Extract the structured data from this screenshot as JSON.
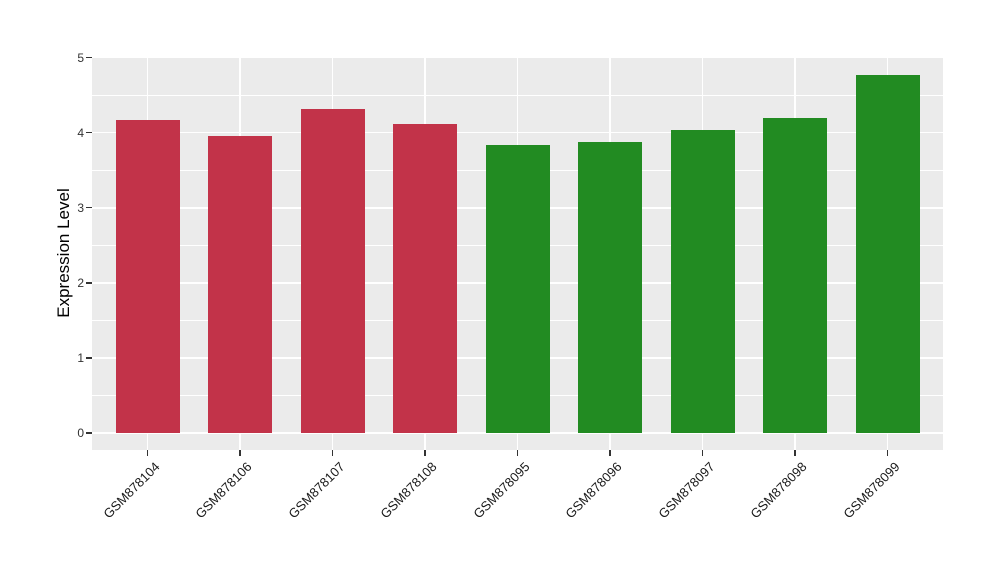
{
  "figure": {
    "background": "#ffffff",
    "panel_background": "#ebebeb",
    "grid_color": "#ffffff",
    "tick_color": "#333333",
    "text_color": "#1a1a1a"
  },
  "chart_data": {
    "type": "bar",
    "title": "",
    "xlabel": "",
    "ylabel": "Expression Level",
    "categories": [
      "GSM878104",
      "GSM878106",
      "GSM878107",
      "GSM878108",
      "GSM878095",
      "GSM878096",
      "GSM878097",
      "GSM878098",
      "GSM878099"
    ],
    "values": [
      4.17,
      3.95,
      4.31,
      4.12,
      3.83,
      3.87,
      4.04,
      4.19,
      4.77
    ],
    "groups": [
      "group1",
      "group1",
      "group1",
      "group1",
      "group2",
      "group2",
      "group2",
      "group2",
      "group2"
    ],
    "group_colors": {
      "group1": "#c23349",
      "group2": "#228b22"
    },
    "ylim": [
      0,
      5
    ],
    "yticks": [
      0,
      1,
      2,
      3,
      4,
      5
    ],
    "x_tick_label_angle": 45,
    "grid": {
      "horizontal_major": true,
      "horizontal_minor": true,
      "vertical_at_categories": true
    },
    "legend_position": "none"
  }
}
